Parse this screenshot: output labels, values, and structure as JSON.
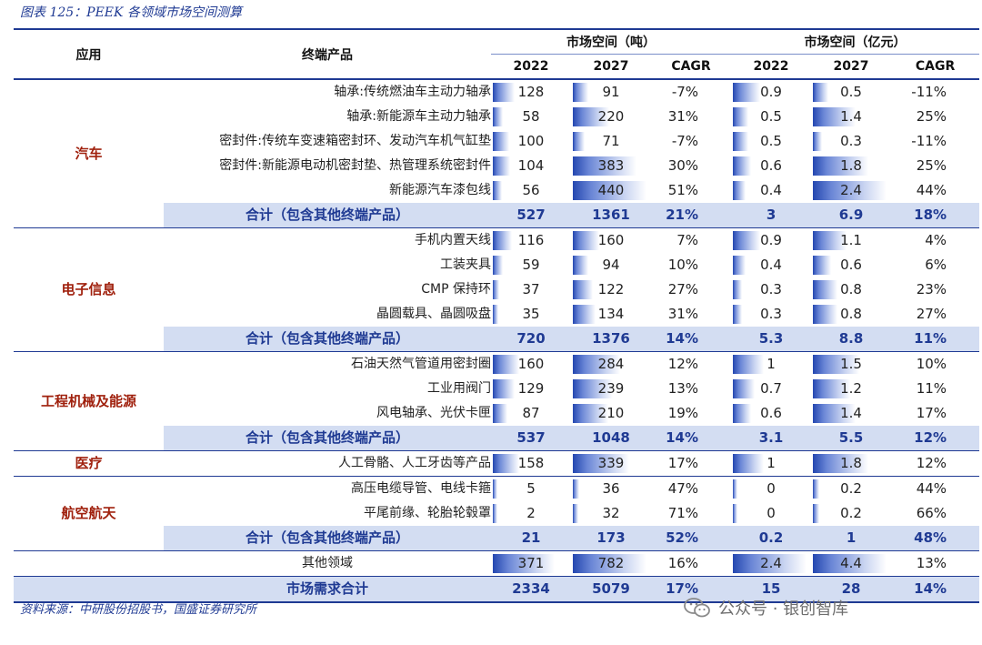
{
  "title": "图表 125：PEEK 各领域市场空间测算",
  "headers": {
    "app": "应用",
    "product": "终端产品",
    "group_tons": "市场空间（吨）",
    "group_yuan": "市场空间（亿元）",
    "cols": [
      "2022",
      "2027",
      "CAGR",
      "2022",
      "2027",
      "CAGR"
    ]
  },
  "sections": [
    {
      "app": "汽车",
      "rows": [
        {
          "product": "轴承:传统燃油车主动力轴承",
          "t22": "128",
          "t27": "91",
          "tc": "-7%",
          "y22": "0.9",
          "y27": "0.5",
          "yc": "-11%"
        },
        {
          "product": "轴承:新能源车主动力轴承",
          "t22": "58",
          "t27": "220",
          "tc": "31%",
          "y22": "0.5",
          "y27": "1.4",
          "yc": "25%"
        },
        {
          "product": "密封件:传统车变速箱密封环、发动汽车机气缸垫",
          "t22": "100",
          "t27": "71",
          "tc": "-7%",
          "y22": "0.5",
          "y27": "0.3",
          "yc": "-11%"
        },
        {
          "product": "密封件:新能源电动机密封垫、热管理系统密封件",
          "t22": "104",
          "t27": "383",
          "tc": "30%",
          "y22": "0.6",
          "y27": "1.8",
          "yc": "25%"
        },
        {
          "product": "新能源汽车漆包线",
          "t22": "56",
          "t27": "440",
          "tc": "51%",
          "y22": "0.4",
          "y27": "2.4",
          "yc": "44%"
        }
      ],
      "subtotal": {
        "product": "合计（包含其他终端产品）",
        "t22": "527",
        "t27": "1361",
        "tc": "21%",
        "y22": "3",
        "y27": "6.9",
        "yc": "18%"
      }
    },
    {
      "app": "电子信息",
      "rows": [
        {
          "product": "手机内置天线",
          "t22": "116",
          "t27": "160",
          "tc": "7%",
          "y22": "0.9",
          "y27": "1.1",
          "yc": "4%"
        },
        {
          "product": "工装夹具",
          "t22": "59",
          "t27": "94",
          "tc": "10%",
          "y22": "0.4",
          "y27": "0.6",
          "yc": "6%"
        },
        {
          "product": "CMP 保持环",
          "t22": "37",
          "t27": "122",
          "tc": "27%",
          "y22": "0.3",
          "y27": "0.8",
          "yc": "23%"
        },
        {
          "product": "晶圆载具、晶圆吸盘",
          "t22": "35",
          "t27": "134",
          "tc": "31%",
          "y22": "0.3",
          "y27": "0.8",
          "yc": "27%"
        }
      ],
      "subtotal": {
        "product": "合计（包含其他终端产品）",
        "t22": "720",
        "t27": "1376",
        "tc": "14%",
        "y22": "5.3",
        "y27": "8.8",
        "yc": "11%"
      }
    },
    {
      "app": "工程机械及能源",
      "rows": [
        {
          "product": "石油天然气管道用密封圈",
          "t22": "160",
          "t27": "284",
          "tc": "12%",
          "y22": "1",
          "y27": "1.5",
          "yc": "10%"
        },
        {
          "product": "工业用阀门",
          "t22": "129",
          "t27": "239",
          "tc": "13%",
          "y22": "0.7",
          "y27": "1.2",
          "yc": "11%"
        },
        {
          "product": "风电轴承、光伏卡匣",
          "t22": "87",
          "t27": "210",
          "tc": "19%",
          "y22": "0.6",
          "y27": "1.4",
          "yc": "17%"
        }
      ],
      "subtotal": {
        "product": "合计（包含其他终端产品）",
        "t22": "537",
        "t27": "1048",
        "tc": "14%",
        "y22": "3.1",
        "y27": "5.5",
        "yc": "12%"
      }
    },
    {
      "app": "医疗",
      "rows": [
        {
          "product": "人工骨骼、人工牙齿等产品",
          "t22": "158",
          "t27": "339",
          "tc": "17%",
          "y22": "1",
          "y27": "1.8",
          "yc": "12%"
        }
      ],
      "subtotal": null
    },
    {
      "app": "航空航天",
      "rows": [
        {
          "product": "高压电缆导管、电线卡箍",
          "t22": "5",
          "t27": "36",
          "tc": "47%",
          "y22": "0",
          "y27": "0.2",
          "yc": "44%"
        },
        {
          "product": "平尾前缘、轮胎轮毂罩",
          "t22": "2",
          "t27": "32",
          "tc": "71%",
          "y22": "0",
          "y27": "0.2",
          "yc": "66%"
        }
      ],
      "subtotal": {
        "product": "合计（包含其他终端产品）",
        "t22": "21",
        "t27": "173",
        "tc": "52%",
        "y22": "0.2",
        "y27": "1",
        "yc": "48%"
      }
    }
  ],
  "other": {
    "product": "其他领域",
    "t22": "371",
    "t27": "782",
    "tc": "16%",
    "y22": "2.4",
    "y27": "4.4",
    "yc": "13%"
  },
  "total": {
    "product": "市场需求合计",
    "t22": "2334",
    "t27": "5079",
    "tc": "17%",
    "y22": "15",
    "y27": "28",
    "yc": "14%"
  },
  "source": "资料来源：中研股份招股书，国盛证券研究所",
  "watermark": "公众号 · 银创智库",
  "bar_colors": {
    "strong": "#2447b0",
    "light": "#c9d4f1"
  },
  "accent": "#1f3a93",
  "app_label_color": "#a0210e",
  "subtotal_bg": "#d3ddf2"
}
